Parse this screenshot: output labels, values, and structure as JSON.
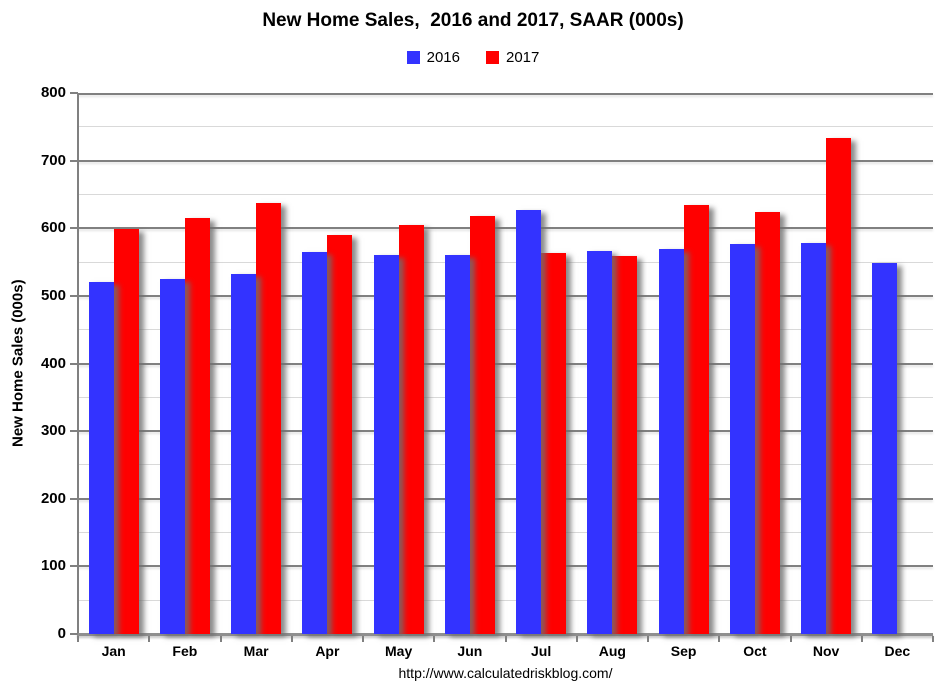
{
  "chart_data": {
    "type": "bar",
    "title": "New Home Sales,  2016 and 2017, SAAR (000s)",
    "ylabel": "New Home Sales (000s)",
    "footer_url": "http://www.calculatedriskblog.com/",
    "categories": [
      "Jan",
      "Feb",
      "Mar",
      "Apr",
      "May",
      "Jun",
      "Jul",
      "Aug",
      "Sep",
      "Oct",
      "Nov",
      "Dec"
    ],
    "series": [
      {
        "name": "2016",
        "color": "#3333ff",
        "values": [
          520,
          525,
          533,
          565,
          560,
          560,
          627,
          567,
          570,
          577,
          578,
          548
        ]
      },
      {
        "name": "2017",
        "color": "#ff0000",
        "values": [
          599,
          615,
          638,
          590,
          605,
          618,
          564,
          559,
          635,
          624,
          733,
          null
        ]
      }
    ],
    "ylim": [
      0,
      800
    ],
    "ytick_major": 100,
    "ytick_minor": 50,
    "grid": "horizontal-major-and-minor",
    "legend_position": "top-center",
    "colors": {
      "major_grid": "#808080",
      "minor_grid": "#d9d9d9",
      "axis": "#808080",
      "background": "#ffffff",
      "text": "#000000"
    }
  }
}
